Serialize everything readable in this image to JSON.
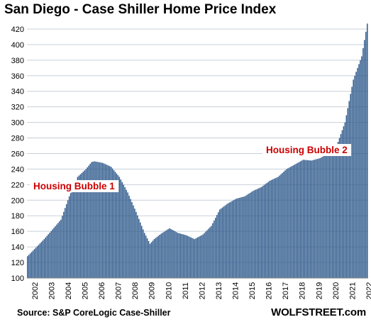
{
  "chart_data": {
    "type": "bar",
    "title": "San Diego - Case Shiller Home Price Index",
    "source": "Source: S&P CoreLogic Case-Shiller",
    "brand": "WOLFSTREET.com",
    "bar_color": "#2f5a8c",
    "annotation_color": "#cc0000",
    "xlabel": "",
    "ylabel": "",
    "ylim": [
      100,
      430
    ],
    "yticks": [
      100,
      120,
      140,
      160,
      180,
      200,
      220,
      240,
      260,
      280,
      300,
      320,
      340,
      360,
      380,
      400,
      420
    ],
    "year_labels": [
      "2002",
      "2003",
      "2004",
      "2005",
      "2006",
      "2007",
      "2008",
      "2009",
      "2010",
      "2011",
      "2012",
      "2013",
      "2014",
      "2015",
      "2016",
      "2017",
      "2018",
      "2019",
      "2020",
      "2021",
      "2022"
    ],
    "grid": true,
    "frequency": "monthly",
    "start": "2002-01",
    "end": "2022-05",
    "annotations": [
      {
        "text": "Housing Bubble 1"
      },
      {
        "text": "Housing Bubble 2"
      }
    ],
    "keypoints": [
      [
        "2002-01",
        128
      ],
      [
        "2003-01",
        150
      ],
      [
        "2004-01",
        175
      ],
      [
        "2004-07",
        205
      ],
      [
        "2005-01",
        230
      ],
      [
        "2005-07",
        240
      ],
      [
        "2005-11",
        249
      ],
      [
        "2006-01",
        250
      ],
      [
        "2006-07",
        248
      ],
      [
        "2007-01",
        243
      ],
      [
        "2007-07",
        230
      ],
      [
        "2008-01",
        210
      ],
      [
        "2008-07",
        185
      ],
      [
        "2009-01",
        158
      ],
      [
        "2009-05",
        144
      ],
      [
        "2009-08",
        150
      ],
      [
        "2010-01",
        157
      ],
      [
        "2010-07",
        164
      ],
      [
        "2011-01",
        158
      ],
      [
        "2011-07",
        155
      ],
      [
        "2012-01",
        150
      ],
      [
        "2012-07",
        156
      ],
      [
        "2013-01",
        167
      ],
      [
        "2013-07",
        188
      ],
      [
        "2014-01",
        196
      ],
      [
        "2014-07",
        202
      ],
      [
        "2015-01",
        205
      ],
      [
        "2015-07",
        212
      ],
      [
        "2016-01",
        217
      ],
      [
        "2016-07",
        225
      ],
      [
        "2017-01",
        230
      ],
      [
        "2017-07",
        240
      ],
      [
        "2018-01",
        246
      ],
      [
        "2018-07",
        252
      ],
      [
        "2019-01",
        251
      ],
      [
        "2019-07",
        254
      ],
      [
        "2020-01",
        260
      ],
      [
        "2020-07",
        270
      ],
      [
        "2021-01",
        300
      ],
      [
        "2021-07",
        355
      ],
      [
        "2022-01",
        385
      ],
      [
        "2022-05",
        427
      ]
    ]
  }
}
